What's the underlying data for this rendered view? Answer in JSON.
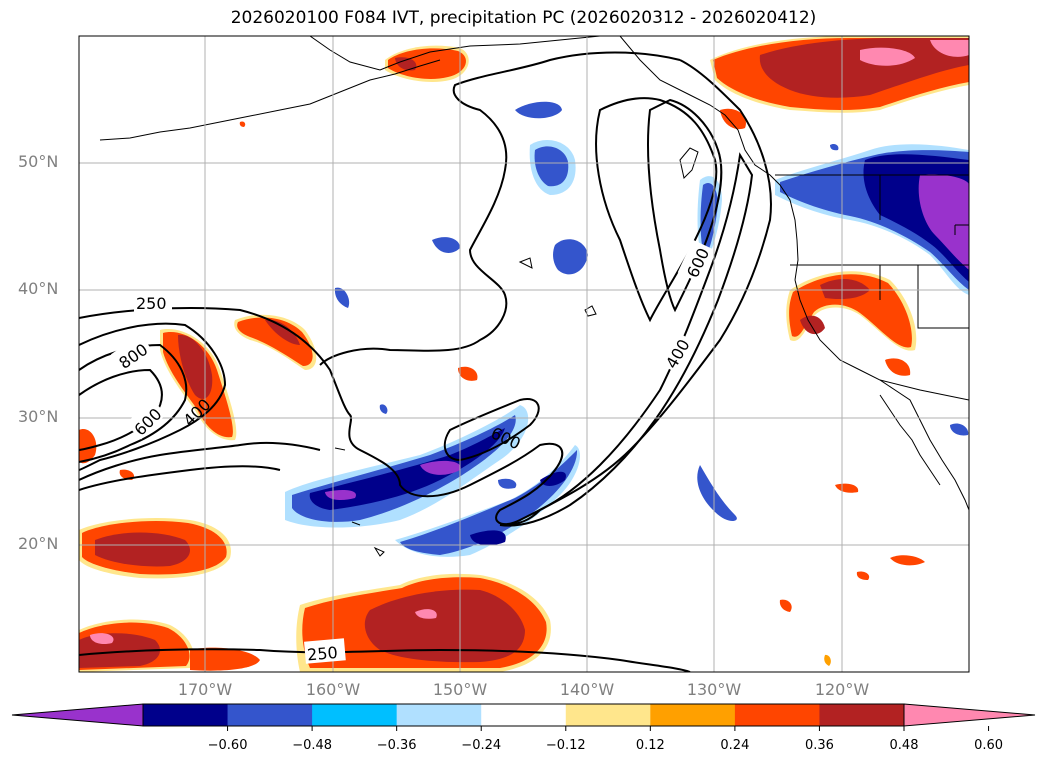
{
  "title": "2026020100 F084 IVT, precipitation PC (2026020312 - 2026020412)",
  "map": {
    "lat_labels": [
      "50°N",
      "40°N",
      "30°N",
      "20°N"
    ],
    "lon_labels": [
      "170°W",
      "160°W",
      "150°W",
      "140°W",
      "130°W",
      "120°W"
    ],
    "contour_labels": [
      "250",
      "800",
      "600",
      "400",
      "600",
      "600",
      "400",
      "250"
    ]
  },
  "colorbar": {
    "ticks": [
      "−0.60",
      "−0.48",
      "−0.36",
      "−0.24",
      "−0.12",
      "0.12",
      "0.24",
      "0.36",
      "0.48",
      "0.60"
    ],
    "colors": [
      "#9932cc",
      "#00008b",
      "#3455cc",
      "#00bfff",
      "#b0e0ff",
      "#ffffff",
      "#ffe68c",
      "#ffa000",
      "#ff4500",
      "#b22222",
      "#ff88b0"
    ]
  }
}
